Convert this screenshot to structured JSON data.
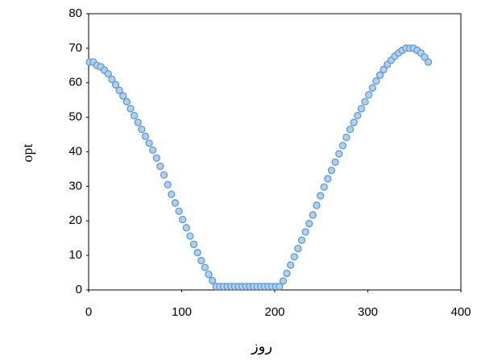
{
  "chart_data": {
    "type": "scatter",
    "x_label": "روز",
    "y_label": "opt",
    "x": [
      1,
      5,
      9,
      13,
      17,
      21,
      25,
      29,
      33,
      37,
      41,
      45,
      49,
      53,
      57,
      61,
      65,
      69,
      73,
      77,
      81,
      85,
      89,
      93,
      97,
      101,
      105,
      109,
      113,
      117,
      121,
      125,
      129,
      133,
      137,
      141,
      145,
      149,
      153,
      157,
      161,
      165,
      169,
      173,
      177,
      181,
      185,
      189,
      193,
      197,
      201,
      205,
      209,
      213,
      217,
      221,
      225,
      229,
      233,
      237,
      241,
      245,
      249,
      253,
      257,
      261,
      265,
      269,
      273,
      277,
      281,
      285,
      289,
      293,
      297,
      301,
      305,
      309,
      313,
      317,
      321,
      325,
      329,
      333,
      337,
      341,
      345,
      349,
      353,
      357,
      361,
      365
    ],
    "series": [
      {
        "color": "#5b9bd5",
        "fill": "#b4cfee",
        "values": [
          66,
          66,
          65,
          64.6,
          63.6,
          62.6,
          61,
          59.4,
          57.8,
          56.2,
          54.5,
          52.5,
          50.5,
          48.5,
          46.5,
          44.5,
          42.5,
          40.5,
          38.2,
          35.8,
          33.3,
          30.5,
          27.7,
          25.2,
          22.8,
          20.4,
          18,
          15.6,
          13.2,
          10.8,
          8.5,
          6.5,
          4.5,
          2.7,
          1,
          1,
          1,
          1,
          1,
          1,
          1,
          1,
          1,
          1,
          1,
          1,
          1,
          1,
          1,
          1,
          1,
          1,
          2.6,
          4.8,
          7.2,
          9.6,
          12,
          14.4,
          16.8,
          19.2,
          21.7,
          24.5,
          27.3,
          29.8,
          32.2,
          34.6,
          37,
          39.4,
          41.8,
          44.2,
          46.5,
          48.5,
          50.5,
          52.5,
          54.5,
          56.5,
          58.5,
          60.5,
          62.2,
          63.8,
          65.3,
          66.5,
          67.7,
          68.6,
          69.4,
          70,
          70,
          70,
          69.4,
          68.6,
          67.4,
          66
        ]
      }
    ],
    "xlim": [
      0,
      400
    ],
    "xticks": [
      0,
      100,
      200,
      300,
      400
    ],
    "ylim": [
      0,
      80
    ],
    "yticks": [
      0,
      10,
      20,
      30,
      40,
      50,
      60,
      70,
      80
    ]
  }
}
